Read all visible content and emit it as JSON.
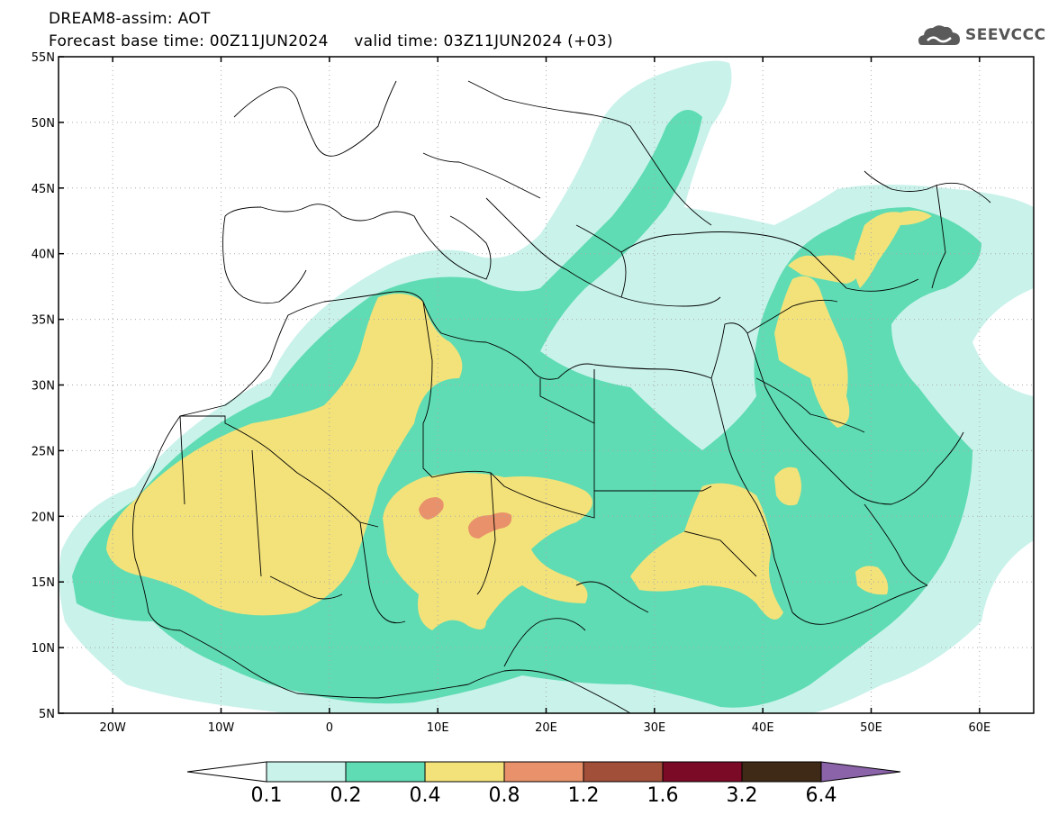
{
  "header": {
    "title_line1": "DREAM8-assim: AOT",
    "title_line2": "Forecast base time: 00Z11JUN2024     valid time: 03Z11JUN2024 (+03)",
    "logo_text": "SEEVCCC"
  },
  "map": {
    "lon_range": [
      -25,
      65
    ],
    "lat_range": [
      5,
      55
    ],
    "lat_ticks": [
      {
        "value": 55,
        "label": "55N"
      },
      {
        "value": 50,
        "label": "50N"
      },
      {
        "value": 45,
        "label": "45N"
      },
      {
        "value": 40,
        "label": "40N"
      },
      {
        "value": 35,
        "label": "35N"
      },
      {
        "value": 30,
        "label": "30N"
      },
      {
        "value": 25,
        "label": "25N"
      },
      {
        "value": 20,
        "label": "20N"
      },
      {
        "value": 15,
        "label": "15N"
      },
      {
        "value": 10,
        "label": "10N"
      },
      {
        "value": 5,
        "label": "5N"
      }
    ],
    "lon_ticks": [
      {
        "value": -20,
        "label": "20W"
      },
      {
        "value": -10,
        "label": "10W"
      },
      {
        "value": 0,
        "label": "0"
      },
      {
        "value": 10,
        "label": "10E"
      },
      {
        "value": 20,
        "label": "20E"
      },
      {
        "value": 30,
        "label": "30E"
      },
      {
        "value": 40,
        "label": "40E"
      },
      {
        "value": 50,
        "label": "50E"
      },
      {
        "value": 60,
        "label": "60E"
      }
    ]
  },
  "colorbar": {
    "levels": [
      "0.1",
      "0.2",
      "0.4",
      "0.8",
      "1.2",
      "1.6",
      "3.2",
      "6.4"
    ],
    "colors": [
      "#c9f2ea",
      "#5fdcb3",
      "#f3e27a",
      "#e8916a",
      "#a24f3a",
      "#7a0a25",
      "#3e2a17",
      "#8a63a8"
    ]
  }
}
